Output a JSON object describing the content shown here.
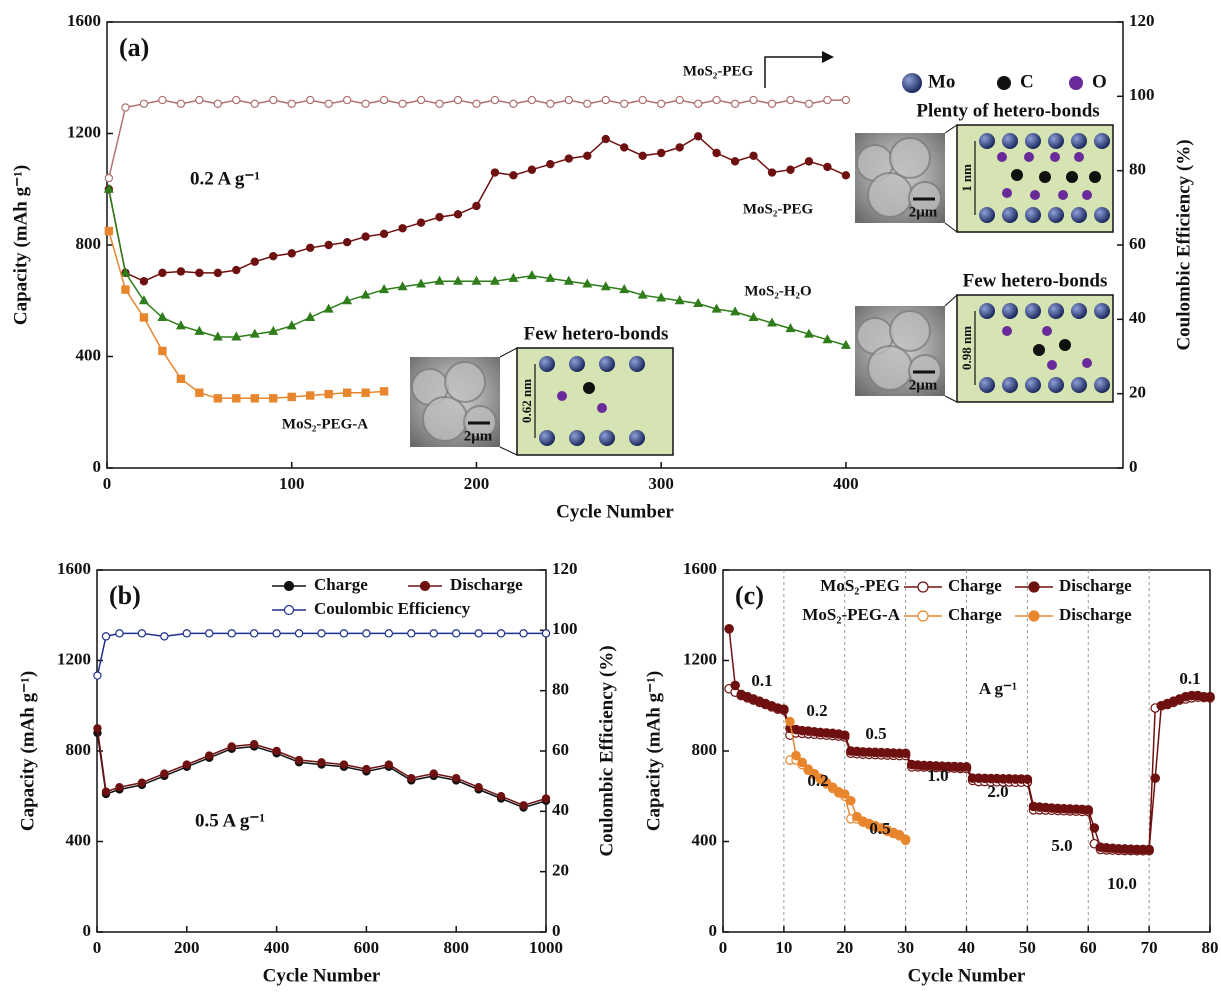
{
  "chart_data": [
    {
      "type": "line",
      "title": "(a)",
      "annotation": "0.2 A g⁻¹",
      "x_label": "Cycle Number",
      "y_label": "Capacity (mAh g⁻¹)",
      "y2_label": "Coulombic Efficiency (%)",
      "xlim": [
        0,
        550
      ],
      "xticks": [
        0,
        100,
        200,
        300,
        400
      ],
      "ylim": [
        0,
        1600
      ],
      "yticks": [
        0,
        400,
        800,
        1200,
        1600
      ],
      "y2lim": [
        0,
        120
      ],
      "y2ticks": [
        0,
        20,
        40,
        60,
        80,
        100,
        120
      ],
      "series": [
        {
          "name": "MoS₂-PEG",
          "color": "#6e1010",
          "marker": "circle",
          "filled": true,
          "x": [
            1,
            10,
            20,
            30,
            40,
            50,
            60,
            70,
            80,
            90,
            100,
            110,
            120,
            130,
            140,
            150,
            160,
            170,
            180,
            190,
            200,
            210,
            220,
            230,
            240,
            250,
            260,
            270,
            280,
            290,
            300,
            310,
            320,
            330,
            340,
            350,
            360,
            370,
            380,
            390,
            400
          ],
          "values": [
            1000,
            700,
            670,
            700,
            705,
            700,
            700,
            710,
            740,
            760,
            770,
            790,
            800,
            810,
            830,
            840,
            860,
            880,
            900,
            910,
            940,
            1060,
            1050,
            1070,
            1090,
            1110,
            1120,
            1180,
            1150,
            1120,
            1130,
            1150,
            1190,
            1130,
            1100,
            1120,
            1060,
            1070,
            1100,
            1080,
            1050
          ]
        },
        {
          "name": "MoS₂-H₂O",
          "color": "#2e7d1a",
          "marker": "triangle",
          "filled": true,
          "x": [
            1,
            10,
            20,
            30,
            40,
            50,
            60,
            70,
            80,
            90,
            100,
            110,
            120,
            130,
            140,
            150,
            160,
            170,
            180,
            190,
            200,
            210,
            220,
            230,
            240,
            250,
            260,
            270,
            280,
            290,
            300,
            310,
            320,
            330,
            340,
            350,
            360,
            370,
            380,
            390,
            400
          ],
          "values": [
            1000,
            700,
            600,
            540,
            510,
            490,
            470,
            470,
            480,
            490,
            510,
            540,
            570,
            600,
            620,
            640,
            650,
            660,
            670,
            670,
            670,
            670,
            680,
            690,
            680,
            670,
            660,
            650,
            640,
            620,
            610,
            600,
            590,
            570,
            560,
            540,
            520,
            500,
            480,
            460,
            440
          ]
        },
        {
          "name": "MoS₂-PEG-A",
          "color": "#e8862e",
          "marker": "square",
          "filled": true,
          "x": [
            1,
            10,
            20,
            30,
            40,
            50,
            60,
            70,
            80,
            90,
            100,
            110,
            120,
            130,
            140,
            150
          ],
          "values": [
            850,
            640,
            540,
            420,
            320,
            270,
            250,
            250,
            250,
            250,
            255,
            260,
            265,
            270,
            270,
            275
          ]
        },
        {
          "name": "MoS₂-PEG",
          "color": "#b07070",
          "marker": "circle",
          "filled": false,
          "axis": "y2",
          "x": [
            1,
            10,
            20,
            30,
            40,
            50,
            60,
            70,
            80,
            90,
            100,
            110,
            120,
            130,
            140,
            150,
            160,
            170,
            180,
            190,
            200,
            210,
            220,
            230,
            240,
            250,
            260,
            270,
            280,
            290,
            300,
            310,
            320,
            330,
            340,
            350,
            360,
            370,
            380,
            390,
            400
          ],
          "values": [
            78,
            97,
            98,
            99,
            98,
            99,
            98,
            99,
            98,
            99,
            98,
            99,
            98,
            99,
            98,
            99,
            98,
            99,
            98,
            99,
            98,
            99,
            98,
            99,
            98,
            99,
            98,
            99,
            98,
            99,
            98,
            99,
            98,
            99,
            98,
            99,
            98,
            99,
            98,
            99,
            99
          ]
        }
      ],
      "atom_legend": [
        "Mo",
        "C",
        "O"
      ],
      "insets": [
        {
          "title": "Plenty of hetero-bonds",
          "scale": "2μm",
          "spacing": "1 nm"
        },
        {
          "title": "Few hetero-bonds",
          "scale": "2μm",
          "spacing": "0.98 nm"
        },
        {
          "title": "Few hetero-bonds",
          "scale": "2μm",
          "spacing": "0.62 nm"
        }
      ]
    },
    {
      "type": "line",
      "title": "(b)",
      "annotation": "0.5 A g⁻¹",
      "x_label": "Cycle Number",
      "y_label": "Capacity (mAh g⁻¹)",
      "y2_label": "Coulombic Efficiency (%)",
      "xlim": [
        0,
        1000
      ],
      "xticks": [
        0,
        200,
        400,
        600,
        800,
        1000
      ],
      "ylim": [
        0,
        1600
      ],
      "yticks": [
        0,
        400,
        800,
        1200,
        1600
      ],
      "y2lim": [
        0,
        120
      ],
      "y2ticks": [
        0,
        20,
        40,
        60,
        80,
        100,
        120
      ],
      "x": [
        1,
        20,
        50,
        100,
        150,
        200,
        250,
        300,
        350,
        400,
        450,
        500,
        550,
        600,
        650,
        700,
        750,
        800,
        850,
        900,
        950,
        1000
      ],
      "series": [
        {
          "name": "Charge",
          "color": "#111111",
          "marker": "circle",
          "filled": true,
          "values": [
            880,
            610,
            630,
            650,
            690,
            730,
            770,
            810,
            820,
            790,
            750,
            740,
            730,
            710,
            730,
            670,
            690,
            670,
            630,
            590,
            550,
            580
          ]
        },
        {
          "name": "Discharge",
          "color": "#6e1010",
          "marker": "circle",
          "filled": true,
          "values": [
            900,
            620,
            640,
            660,
            700,
            740,
            780,
            820,
            830,
            800,
            760,
            750,
            740,
            720,
            740,
            680,
            700,
            680,
            640,
            600,
            560,
            590
          ]
        },
        {
          "name": "Coulombic Efficiency",
          "color": "#1f2f8f",
          "marker": "circle",
          "filled": false,
          "axis": "y2",
          "values": [
            85,
            98,
            99,
            99,
            98,
            99,
            99,
            99,
            99,
            99,
            99,
            99,
            99,
            99,
            99,
            99,
            99,
            99,
            99,
            99,
            99,
            99
          ]
        }
      ]
    },
    {
      "type": "line",
      "title": "(c)",
      "x_label": "Cycle Number",
      "y_label": "Capacity (mAh g⁻¹)",
      "xlim": [
        0,
        80
      ],
      "xticks": [
        0,
        10,
        20,
        30,
        40,
        50,
        60,
        70,
        80
      ],
      "ylim": [
        0,
        1600
      ],
      "yticks": [
        0,
        400,
        800,
        1200,
        1600
      ],
      "vlines": [
        10,
        20,
        30,
        40,
        50,
        60,
        70
      ],
      "x": [
        1,
        2,
        3,
        4,
        5,
        6,
        7,
        8,
        9,
        10,
        11,
        12,
        13,
        14,
        15,
        16,
        17,
        18,
        19,
        20,
        21,
        22,
        23,
        24,
        25,
        26,
        27,
        28,
        29,
        30,
        31,
        32,
        33,
        34,
        35,
        36,
        37,
        38,
        39,
        40,
        41,
        42,
        43,
        44,
        45,
        46,
        47,
        48,
        49,
        50,
        51,
        52,
        53,
        54,
        55,
        56,
        57,
        58,
        59,
        60,
        61,
        62,
        63,
        64,
        65,
        66,
        67,
        68,
        69,
        70,
        71,
        72,
        73,
        74,
        75,
        76,
        77,
        78,
        79,
        80
      ],
      "legend_groups": [
        "MoS₂-PEG",
        "MoS₂-PEG-A"
      ],
      "series": [
        {
          "name": "Charge",
          "color": "#6e1010",
          "marker": "circle",
          "filled": false,
          "values": [
            1075,
            1060,
            1045,
            1035,
            1025,
            1015,
            1005,
            995,
            985,
            980,
            870,
            880,
            878,
            876,
            874,
            872,
            870,
            868,
            866,
            862,
            790,
            788,
            786,
            785,
            784,
            783,
            782,
            781,
            780,
            780,
            730,
            730,
            729,
            728,
            727,
            726,
            725,
            724,
            723,
            722,
            670,
            665,
            665,
            664,
            664,
            663,
            663,
            662,
            662,
            662,
            540,
            540,
            539,
            538,
            537,
            536,
            535,
            534,
            533,
            532,
            390,
            365,
            363,
            362,
            361,
            360,
            360,
            359,
            359,
            359,
            990,
            1000,
            1005,
            1015,
            1025,
            1030,
            1035,
            1038,
            1036,
            1035
          ]
        },
        {
          "name": "Discharge",
          "color": "#6e1010",
          "marker": "circle",
          "filled": true,
          "values": [
            1340,
            1090,
            1050,
            1040,
            1030,
            1020,
            1010,
            1000,
            990,
            985,
            900,
            895,
            890,
            888,
            885,
            882,
            880,
            878,
            875,
            870,
            800,
            798,
            796,
            795,
            794,
            793,
            792,
            791,
            790,
            790,
            740,
            738,
            736,
            735,
            734,
            733,
            732,
            731,
            730,
            730,
            680,
            680,
            679,
            678,
            678,
            677,
            677,
            676,
            676,
            675,
            555,
            552,
            550,
            548,
            546,
            545,
            544,
            543,
            542,
            540,
            460,
            375,
            372,
            370,
            368,
            367,
            366,
            365,
            365,
            365,
            680,
            1000,
            1010,
            1020,
            1030,
            1040,
            1045,
            1045,
            1040,
            1040
          ]
        },
        {
          "name": "Charge",
          "color": "#e8862e",
          "marker": "circle",
          "filled": false,
          "x": [
            11,
            12,
            13,
            14,
            15,
            16,
            17,
            18,
            19,
            20,
            21,
            22,
            23,
            24,
            25,
            26,
            27,
            28,
            29,
            30
          ],
          "values": [
            760,
            760,
            740,
            715,
            695,
            675,
            655,
            635,
            615,
            600,
            500,
            500,
            485,
            475,
            465,
            455,
            445,
            435,
            425,
            405
          ]
        },
        {
          "name": "Discharge",
          "color": "#e8862e",
          "marker": "circle",
          "filled": true,
          "x": [
            11,
            12,
            13,
            14,
            15,
            16,
            17,
            18,
            19,
            20,
            21,
            22,
            23,
            24,
            25,
            26,
            27,
            28,
            29,
            30
          ],
          "values": [
            930,
            780,
            750,
            720,
            700,
            680,
            660,
            640,
            620,
            610,
            580,
            510,
            490,
            480,
            470,
            460,
            450,
            440,
            430,
            410
          ]
        }
      ],
      "rate_labels": {
        "color": "#6e1010",
        "texts": [
          "0.1",
          "0.2",
          "0.5",
          "1.0",
          "2.0",
          "5.0",
          "10.0",
          "0.1"
        ]
      },
      "rate_unit": "A g⁻¹",
      "rate_labels_a": {
        "color": "#e8862e",
        "texts": [
          "0.2",
          "0.5"
        ]
      }
    }
  ]
}
